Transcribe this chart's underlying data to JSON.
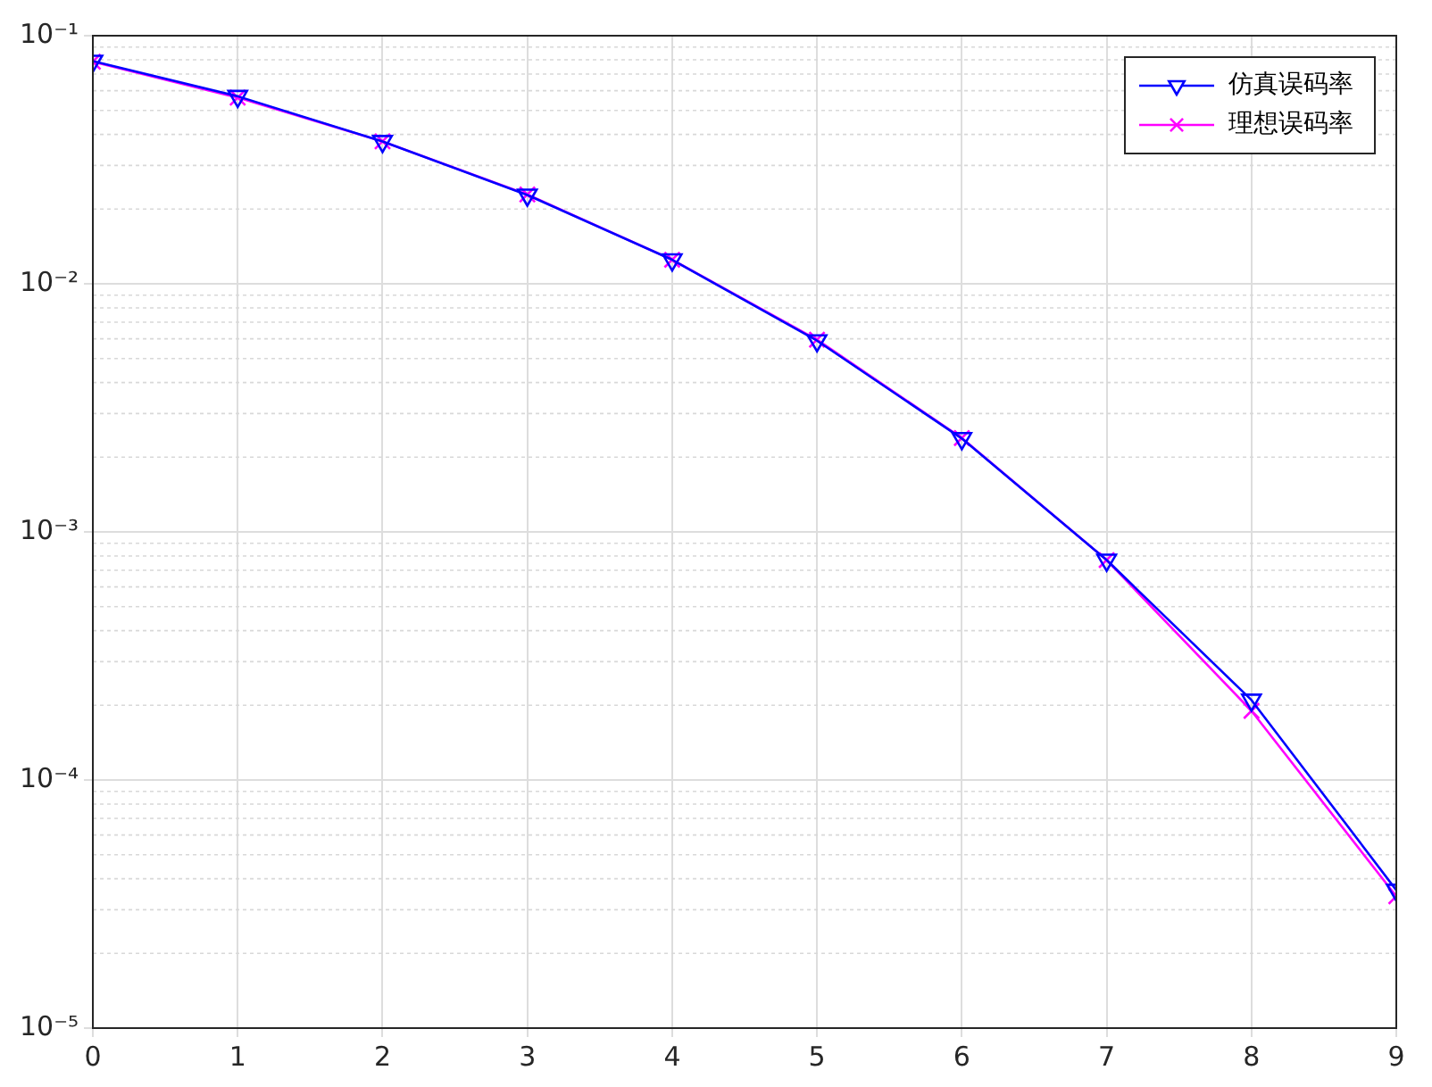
{
  "chart_data": {
    "type": "line",
    "x": [
      0,
      1,
      2,
      3,
      4,
      5,
      6,
      7,
      8,
      9
    ],
    "series": [
      {
        "name": "仿真误码率",
        "color": "#0000ff",
        "marker": "triangle",
        "values": [
          0.079,
          0.057,
          0.0375,
          0.0228,
          0.0125,
          0.0059,
          0.00238,
          0.00077,
          0.00021,
          3.6e-05
        ]
      },
      {
        "name": "理想误码率",
        "color": "#ff00ff",
        "marker": "cross",
        "values": [
          0.0786,
          0.0563,
          0.0375,
          0.0229,
          0.0125,
          0.00595,
          0.00239,
          0.00077,
          0.00019,
          3.4e-05
        ]
      }
    ],
    "log": "y",
    "xlim": [
      0,
      9
    ],
    "xticks": [
      0,
      1,
      2,
      3,
      4,
      5,
      6,
      7,
      8,
      9
    ],
    "ylim": [
      1e-05,
      0.1
    ],
    "yticks": [
      {
        "value": 1e-05,
        "label": "10⁻⁵"
      },
      {
        "value": 0.0001,
        "label": "10⁻⁴"
      },
      {
        "value": 0.001,
        "label": "10⁻³"
      },
      {
        "value": 0.01,
        "label": "10⁻²"
      },
      {
        "value": 0.1,
        "label": "10⁻¹"
      }
    ],
    "grid": true,
    "legend": "top right",
    "line_style": "solid"
  }
}
